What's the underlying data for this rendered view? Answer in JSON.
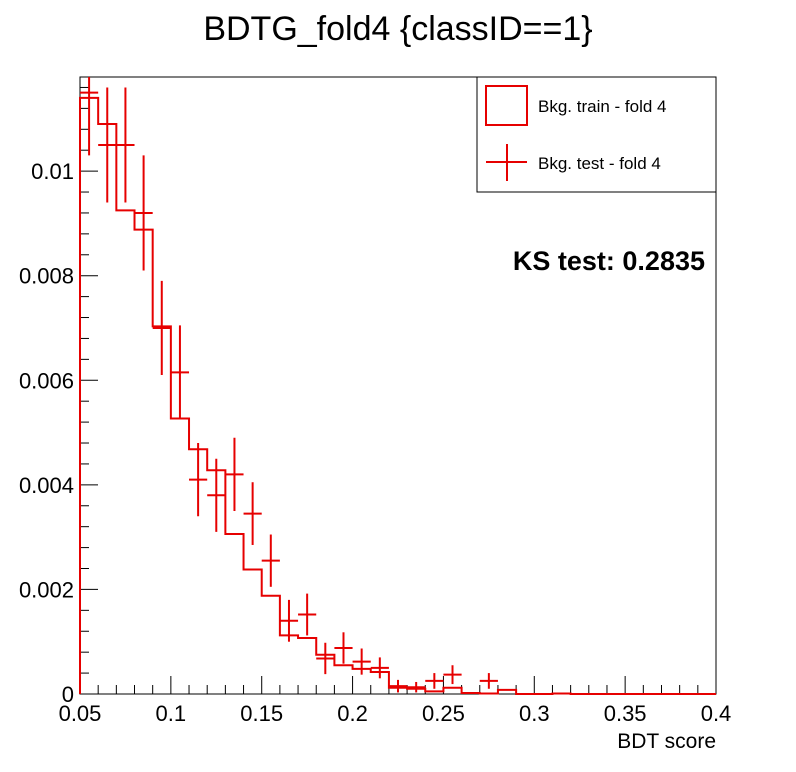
{
  "chart_data": {
    "type": "histogram",
    "title": "BDTG_fold4 {classID==1}",
    "xlabel": "BDT score",
    "ylabel": "",
    "xlim": [
      0.05,
      0.4
    ],
    "ylim": [
      0,
      0.0118
    ],
    "x_ticks": [
      {
        "value": 0.05,
        "label": "0.05"
      },
      {
        "value": 0.1,
        "label": "0.1"
      },
      {
        "value": 0.15,
        "label": "0.15"
      },
      {
        "value": 0.2,
        "label": "0.2"
      },
      {
        "value": 0.25,
        "label": "0.25"
      },
      {
        "value": 0.3,
        "label": "0.3"
      },
      {
        "value": 0.35,
        "label": "0.35"
      },
      {
        "value": 0.4,
        "label": "0.4"
      }
    ],
    "y_ticks": [
      {
        "value": 0,
        "label": "0"
      },
      {
        "value": 0.002,
        "label": "0.002"
      },
      {
        "value": 0.004,
        "label": "0.004"
      },
      {
        "value": 0.006,
        "label": "0.006"
      },
      {
        "value": 0.008,
        "label": "0.008"
      },
      {
        "value": 0.01,
        "label": "0.01"
      }
    ],
    "bin_edges": [
      0.05,
      0.06,
      0.07,
      0.08,
      0.09,
      0.1,
      0.11,
      0.12,
      0.13,
      0.14,
      0.15,
      0.16,
      0.17,
      0.18,
      0.19,
      0.2,
      0.21,
      0.22,
      0.23,
      0.24,
      0.25,
      0.26,
      0.27,
      0.28,
      0.29,
      0.3,
      0.31,
      0.32,
      0.33,
      0.34,
      0.35,
      0.36,
      0.37,
      0.38,
      0.39,
      0.4
    ],
    "series": [
      {
        "name": "Bkg. train - fold 4",
        "style": "step",
        "color": "#e60000",
        "values": [
          0.0114,
          0.0109,
          0.00925,
          0.00888,
          0.00703,
          0.00527,
          0.00468,
          0.00428,
          0.00306,
          0.00238,
          0.00188,
          0.00112,
          0.00107,
          0.00075,
          0.00055,
          0.00048,
          0.00042,
          0.00012,
          0.0001,
          5e-05,
          0.00012,
          2e-05,
          1e-05,
          8e-05,
          0,
          0,
          1e-05,
          0,
          0,
          0,
          0,
          0,
          0,
          0,
          0
        ]
      },
      {
        "name": "Bkg. test - fold 4",
        "style": "errorbar",
        "color": "#e60000",
        "values": [
          0.0115,
          0.0105,
          0.0105,
          0.0092,
          0.007,
          0.00615,
          0.0041,
          0.0038,
          0.0042,
          0.00345,
          0.00255,
          0.0014,
          0.00152,
          0.00068,
          0.00088,
          0.00062,
          0.0005,
          0.00015,
          0.00013,
          0.00025,
          0.00037,
          0,
          0.00025,
          0,
          0,
          0,
          0,
          0,
          0,
          0,
          0,
          0,
          0,
          0,
          0
        ],
        "errors": [
          0.0012,
          0.0011,
          0.0011,
          0.0011,
          0.0009,
          0.0009,
          0.0007,
          0.0007,
          0.0007,
          0.0006,
          0.0005,
          0.0004,
          0.0004,
          0.0003,
          0.0003,
          0.00025,
          0.0002,
          0.00012,
          0.0001,
          0.00015,
          0.00018,
          0,
          0.00015,
          0,
          0,
          0,
          0,
          0,
          0,
          0,
          0,
          0,
          0,
          0,
          0
        ]
      }
    ],
    "legend": {
      "position": "top-right",
      "entries": [
        "Bkg. train - fold 4",
        "Bkg. test - fold 4"
      ]
    },
    "annotations": [
      {
        "text": "KS test: 0.2835"
      }
    ],
    "grid": false
  }
}
